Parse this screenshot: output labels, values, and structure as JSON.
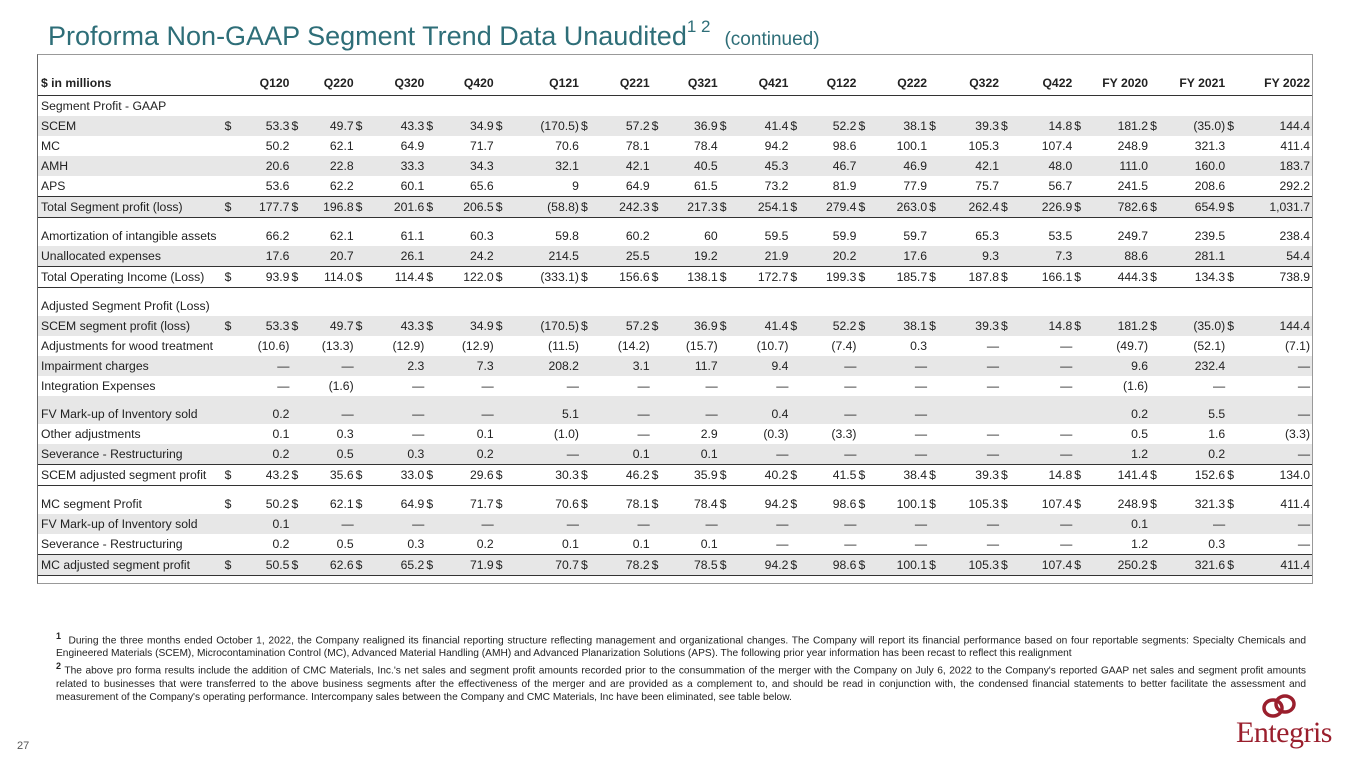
{
  "title": "Proforma Non-GAAP Segment Trend Data Unaudited",
  "title_sup": "1 2",
  "title_cont": "(continued)",
  "page_number": "27",
  "logo_text": "Entegris",
  "columns": [
    "$ in millions",
    "Q120",
    "Q220",
    "Q320",
    "Q420",
    "Q121",
    "Q221",
    "Q321",
    "Q421",
    "Q122",
    "Q222",
    "Q322",
    "Q422",
    "FY 2020",
    "FY 2021",
    "FY 2022"
  ],
  "rows": [
    {
      "label": "Segment Profit - GAAP",
      "values": [
        "",
        "",
        "",
        "",
        "",
        "",
        "",
        "",
        "",
        "",
        "",
        "",
        "",
        "",
        ""
      ]
    },
    {
      "label": "SCEM",
      "dollar": true,
      "shade": true,
      "values": [
        "53.3",
        "49.7",
        "43.3",
        "34.9",
        "(170.5)",
        "57.2",
        "36.9",
        "41.4",
        "52.2",
        "38.1",
        "39.3",
        "14.8",
        "181.2",
        "(35.0)",
        "144.4"
      ]
    },
    {
      "label": "MC",
      "values": [
        "50.2",
        "62.1",
        "64.9",
        "71.7",
        "70.6",
        "78.1",
        "78.4",
        "94.2",
        "98.6",
        "100.1",
        "105.3",
        "107.4",
        "248.9",
        "321.3",
        "411.4"
      ]
    },
    {
      "label": "AMH",
      "shade": true,
      "values": [
        "20.6",
        "22.8",
        "33.3",
        "34.3",
        "32.1",
        "42.1",
        "40.5",
        "45.3",
        "46.7",
        "46.9",
        "42.1",
        "48.0",
        "111.0",
        "160.0",
        "183.7"
      ]
    },
    {
      "label": "APS",
      "values": [
        "53.6",
        "62.2",
        "60.1",
        "65.6",
        "9",
        "64.9",
        "61.5",
        "73.2",
        "81.9",
        "77.9",
        "75.7",
        "56.7",
        "241.5",
        "208.6",
        "292.2"
      ]
    },
    {
      "label": "Total Segment profit (loss)",
      "dollar": true,
      "shade": true,
      "bt": true,
      "bb": true,
      "values": [
        "177.7",
        "196.8",
        "201.6",
        "206.5",
        "(58.8)",
        "242.3",
        "217.3",
        "254.1",
        "279.4",
        "263.0",
        "262.4",
        "226.9",
        "782.6",
        "654.9",
        "1,031.7"
      ]
    },
    {
      "label": "Amortization of intangible assets",
      "gap": true,
      "values": [
        "66.2",
        "62.1",
        "61.1",
        "60.3",
        "59.8",
        "60.2",
        "60",
        "59.5",
        "59.9",
        "59.7",
        "65.3",
        "53.5",
        "249.7",
        "239.5",
        "238.4"
      ]
    },
    {
      "label": "Unallocated expenses",
      "shade": true,
      "values": [
        "17.6",
        "20.7",
        "26.1",
        "24.2",
        "214.5",
        "25.5",
        "19.2",
        "21.9",
        "20.2",
        "17.6",
        "9.3",
        "7.3",
        "88.6",
        "281.1",
        "54.4"
      ]
    },
    {
      "label": "Total Operating Income (Loss)",
      "dollar": true,
      "bt": true,
      "bb": true,
      "values": [
        "93.9",
        "114.0",
        "114.4",
        "122.0",
        "(333.1)",
        "156.6",
        "138.1",
        "172.7",
        "199.3",
        "185.7",
        "187.8",
        "166.1",
        "444.3",
        "134.3",
        "738.9"
      ]
    },
    {
      "label": "Adjusted Segment Profit (Loss)",
      "gap": true,
      "values": [
        "",
        "",
        "",
        "",
        "",
        "",
        "",
        "",
        "",
        "",
        "",
        "",
        "",
        "",
        ""
      ]
    },
    {
      "label": "SCEM segment profit (loss)",
      "dollar": true,
      "shade": true,
      "values": [
        "53.3",
        "49.7",
        "43.3",
        "34.9",
        "(170.5)",
        "57.2",
        "36.9",
        "41.4",
        "52.2",
        "38.1",
        "39.3",
        "14.8",
        "181.2",
        "(35.0)",
        "144.4"
      ]
    },
    {
      "label": "Adjustments for wood treatment",
      "values": [
        "(10.6)",
        "(13.3)",
        "(12.9)",
        "(12.9)",
        "(11.5)",
        "(14.2)",
        "(15.7)",
        "(10.7)",
        "(7.4)",
        "0.3",
        "—",
        "—",
        "(49.7)",
        "(52.1)",
        "(7.1)"
      ]
    },
    {
      "label": "Impairment charges",
      "shade": true,
      "values": [
        "—",
        "—",
        "2.3",
        "7.3",
        "208.2",
        "3.1",
        "11.7",
        "9.4",
        "—",
        "—",
        "—",
        "—",
        "9.6",
        "232.4",
        "—"
      ]
    },
    {
      "label": "Integration Expenses",
      "values": [
        "—",
        "(1.6)",
        "—",
        "—",
        "—",
        "—",
        "—",
        "—",
        "—",
        "—",
        "—",
        "—",
        "(1.6)",
        "—",
        "—"
      ]
    },
    {
      "label": "FV Mark-up of Inventory sold",
      "shade": true,
      "gap": true,
      "values": [
        "0.2",
        "—",
        "—",
        "—",
        "5.1",
        "—",
        "—",
        "0.4",
        "—",
        "—",
        "",
        "",
        "0.2",
        "5.5",
        "—"
      ]
    },
    {
      "label": "Other adjustments",
      "values": [
        "0.1",
        "0.3",
        "—",
        "0.1",
        "(1.0)",
        "—",
        "2.9",
        "(0.3)",
        "(3.3)",
        "—",
        "—",
        "—",
        "0.5",
        "1.6",
        "(3.3)"
      ]
    },
    {
      "label": "Severance - Restructuring",
      "shade": true,
      "values": [
        "0.2",
        "0.5",
        "0.3",
        "0.2",
        "—",
        "0.1",
        "0.1",
        "—",
        "—",
        "—",
        "—",
        "—",
        "1.2",
        "0.2",
        "—"
      ]
    },
    {
      "label": "SCEM adjusted segment profit",
      "dollar": true,
      "bt": true,
      "bb": true,
      "values": [
        "43.2",
        "35.6",
        "33.0",
        "29.6",
        "30.3",
        "46.2",
        "35.9",
        "40.2",
        "41.5",
        "38.4",
        "39.3",
        "14.8",
        "141.4",
        "152.6",
        "134.0"
      ]
    },
    {
      "label": "MC segment Profit",
      "dollar": true,
      "gap": true,
      "values": [
        "50.2",
        "62.1",
        "64.9",
        "71.7",
        "70.6",
        "78.1",
        "78.4",
        "94.2",
        "98.6",
        "100.1",
        "105.3",
        "107.4",
        "248.9",
        "321.3",
        "411.4"
      ]
    },
    {
      "label": "FV Mark-up of Inventory sold",
      "shade": true,
      "values": [
        "0.1",
        "—",
        "—",
        "—",
        "—",
        "—",
        "—",
        "—",
        "—",
        "—",
        "—",
        "—",
        "0.1",
        "—",
        "—"
      ]
    },
    {
      "label": "Severance - Restructuring",
      "values": [
        "0.2",
        "0.5",
        "0.3",
        "0.2",
        "0.1",
        "0.1",
        "0.1",
        "—",
        "—",
        "—",
        "—",
        "—",
        "1.2",
        "0.3",
        "—"
      ]
    },
    {
      "label": "MC adjusted segment profit",
      "dollar": true,
      "shade": true,
      "bt": true,
      "bb": true,
      "values": [
        "50.5",
        "62.6",
        "65.2",
        "71.9",
        "70.7",
        "78.2",
        "78.5",
        "94.2",
        "98.6",
        "100.1",
        "105.3",
        "107.4",
        "250.2",
        "321.6",
        "411.4"
      ]
    }
  ],
  "footnote1_mark": "1",
  "footnote1": "During the three months ended October 1, 2022, the Company realigned its financial reporting structure reflecting management and organizational changes.  The Company will report its financial performance based on four reportable segments: Specialty Chemicals and Engineered Materials (SCEM), Microcontamination Control (MC), Advanced Material Handling (AMH) and Advanced Planarization Solutions (APS). The following prior year information has been recast to reflect this realignment",
  "footnote2_mark": "2",
  "footnote2": "The above pro forma results include the addition of CMC Materials, Inc.'s net sales and segment profit amounts recorded prior to the consummation of the merger with the Company on July 6, 2022 to the Company's reported GAAP net sales and segment profit amounts related to businesses that were transferred to the above business segments after the effectiveness of the merger and are provided as a complement to, and should be read in conjunction with, the condensed financial statements to better facilitate the assessment and measurement of the Company's operating performance. Intercompany sales between the Company and CMC Materials, Inc have been eliminated, see table below.",
  "colors": {
    "title": "#2e6e78",
    "shade": "#e7e7e7",
    "logo": "#9a1f2d"
  }
}
